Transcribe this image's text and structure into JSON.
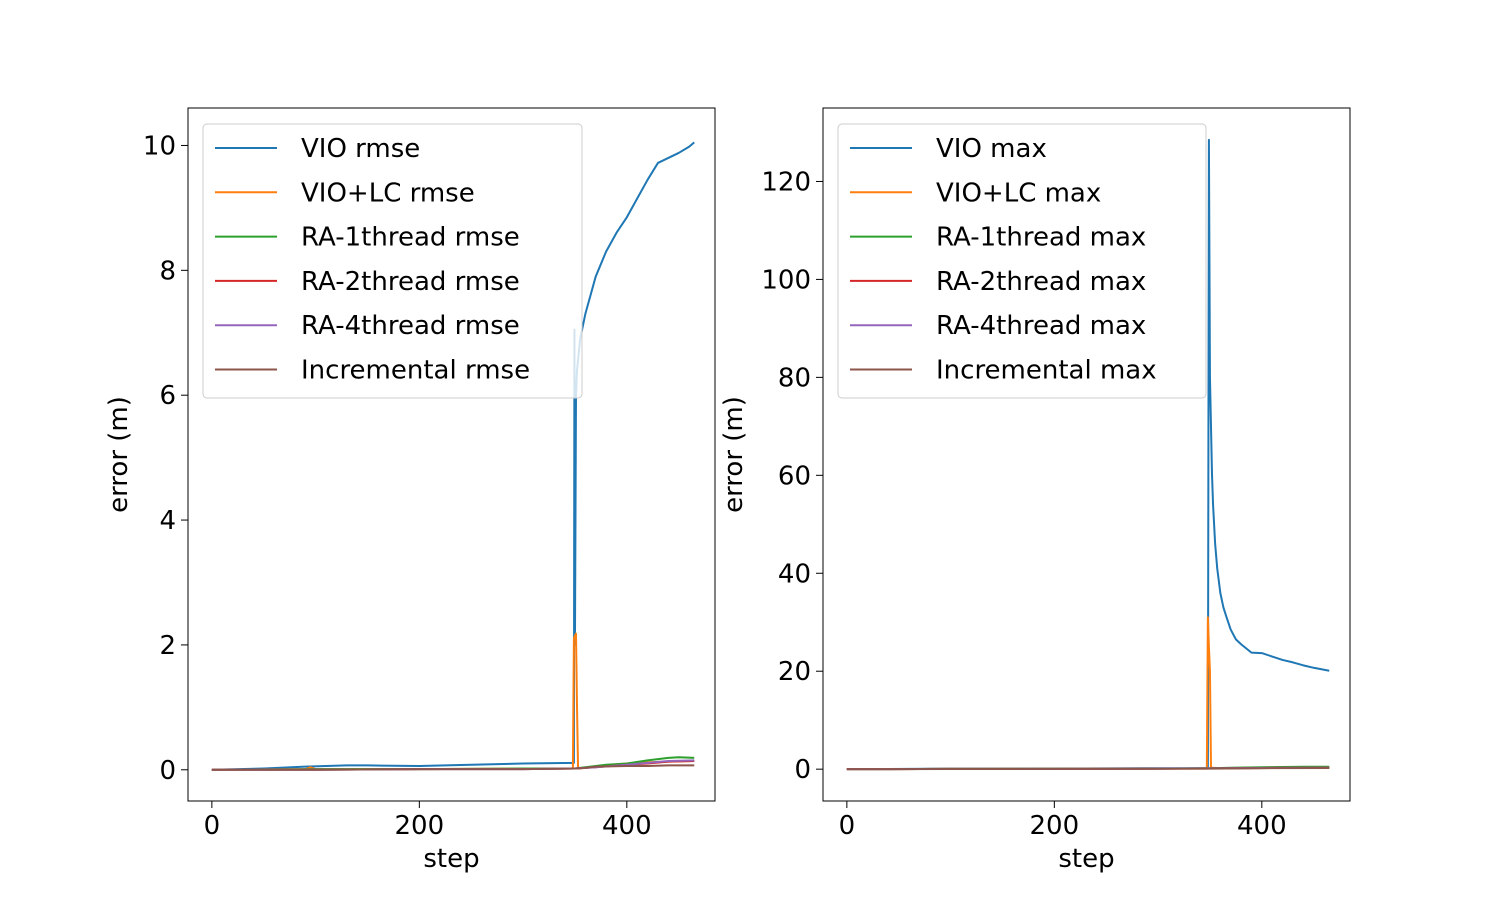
{
  "colors": {
    "c0": "#1f77b4",
    "c1": "#ff7f0e",
    "c2": "#2ca02c",
    "c3": "#d62728",
    "c4": "#9467bd",
    "c5": "#8c564b"
  },
  "chart_data": [
    {
      "type": "line",
      "title": "",
      "xlabel": "step",
      "ylabel": "error (m)",
      "xlim": [
        -23,
        485
      ],
      "ylim": [
        -0.5,
        10.6
      ],
      "xticks": [
        0,
        200,
        400
      ],
      "yticks": [
        0,
        2,
        4,
        6,
        8,
        10
      ],
      "legend_position": "upper-left",
      "grid": false,
      "series": [
        {
          "name": "VIO rmse",
          "color": "#1f77b4",
          "x": [
            0,
            50,
            90,
            130,
            150,
            200,
            250,
            300,
            349,
            349.5,
            350,
            351,
            352,
            355,
            360,
            370,
            380,
            390,
            400,
            410,
            420,
            430,
            440,
            450,
            460,
            465
          ],
          "y": [
            0.0,
            0.02,
            0.05,
            0.07,
            0.07,
            0.06,
            0.08,
            0.1,
            0.11,
            7.05,
            2.0,
            6.0,
            6.4,
            6.9,
            7.3,
            7.9,
            8.3,
            8.6,
            8.85,
            9.15,
            9.45,
            9.72,
            9.8,
            9.88,
            9.98,
            10.05
          ]
        },
        {
          "name": "VIO+LC rmse",
          "color": "#ff7f0e",
          "x": [
            0,
            90,
            95,
            100,
            200,
            300,
            348,
            349,
            350,
            351,
            352,
            353,
            354,
            360,
            380,
            400,
            420,
            440,
            465
          ],
          "y": [
            0.0,
            0.01,
            0.04,
            0.01,
            0.01,
            0.02,
            0.02,
            2.1,
            2.15,
            2.18,
            1.0,
            0.02,
            0.02,
            0.03,
            0.07,
            0.1,
            0.12,
            0.13,
            0.14
          ]
        },
        {
          "name": "RA-1thread rmse",
          "color": "#2ca02c",
          "x": [
            0,
            100,
            200,
            300,
            350,
            360,
            370,
            380,
            400,
            420,
            440,
            450,
            465
          ],
          "y": [
            0.0,
            0.01,
            0.01,
            0.02,
            0.02,
            0.04,
            0.06,
            0.08,
            0.1,
            0.15,
            0.19,
            0.2,
            0.19
          ]
        },
        {
          "name": "RA-2thread rmse",
          "color": "#d62728",
          "x": [
            0,
            100,
            200,
            300,
            350,
            370,
            400,
            420,
            440,
            465
          ],
          "y": [
            0.0,
            0.0,
            0.01,
            0.01,
            0.02,
            0.04,
            0.08,
            0.1,
            0.13,
            0.14
          ]
        },
        {
          "name": "RA-4thread rmse",
          "color": "#9467bd",
          "x": [
            0,
            100,
            200,
            300,
            350,
            370,
            400,
            420,
            440,
            465
          ],
          "y": [
            0.0,
            0.0,
            0.01,
            0.01,
            0.02,
            0.04,
            0.08,
            0.11,
            0.14,
            0.15
          ]
        },
        {
          "name": "Incremental rmse",
          "color": "#8c564b",
          "x": [
            0,
            100,
            200,
            300,
            350,
            360,
            370,
            400,
            420,
            440,
            465
          ],
          "y": [
            0.0,
            0.0,
            0.01,
            0.01,
            0.02,
            0.03,
            0.05,
            0.06,
            0.06,
            0.07,
            0.07
          ]
        }
      ]
    },
    {
      "type": "line",
      "title": "",
      "xlabel": "step",
      "ylabel": "error (m)",
      "xlim": [
        -23,
        485
      ],
      "ylim": [
        -6.5,
        135
      ],
      "xticks": [
        0,
        200,
        400
      ],
      "yticks": [
        0,
        20,
        40,
        60,
        80,
        100,
        120
      ],
      "legend_position": "upper-left",
      "grid": false,
      "series": [
        {
          "name": "VIO max",
          "color": "#1f77b4",
          "x": [
            0,
            100,
            200,
            300,
            348,
            349,
            350,
            351,
            352,
            353,
            355,
            357,
            360,
            363,
            366,
            370,
            375,
            380,
            390,
            400,
            410,
            420,
            430,
            440,
            450,
            465
          ],
          "y": [
            0.0,
            0.1,
            0.1,
            0.2,
            0.2,
            128.5,
            80.0,
            70.0,
            60.0,
            54.0,
            46.0,
            41.0,
            36.0,
            33.0,
            31.0,
            28.5,
            26.5,
            25.5,
            23.8,
            23.7,
            23.0,
            22.3,
            21.8,
            21.2,
            20.7,
            20.1
          ]
        },
        {
          "name": "VIO+LC max",
          "color": "#ff7f0e",
          "x": [
            0,
            100,
            200,
            300,
            347,
            348,
            349,
            350,
            351,
            352,
            360,
            400,
            465
          ],
          "y": [
            0.0,
            0.05,
            0.05,
            0.1,
            0.1,
            31.0,
            25.0,
            20.0,
            0.5,
            0.3,
            0.2,
            0.3,
            0.4
          ]
        },
        {
          "name": "RA-1thread max",
          "color": "#2ca02c",
          "x": [
            0,
            100,
            200,
            300,
            350,
            370,
            400,
            440,
            465
          ],
          "y": [
            0.0,
            0.05,
            0.1,
            0.1,
            0.2,
            0.3,
            0.4,
            0.5,
            0.5
          ]
        },
        {
          "name": "RA-2thread max",
          "color": "#d62728",
          "x": [
            0,
            100,
            200,
            300,
            350,
            400,
            465
          ],
          "y": [
            0.0,
            0.05,
            0.05,
            0.1,
            0.15,
            0.25,
            0.3
          ]
        },
        {
          "name": "RA-4thread max",
          "color": "#9467bd",
          "x": [
            0,
            100,
            200,
            300,
            350,
            400,
            465
          ],
          "y": [
            0.0,
            0.05,
            0.05,
            0.1,
            0.15,
            0.25,
            0.3
          ]
        },
        {
          "name": "Incremental max",
          "color": "#8c564b",
          "x": [
            0,
            100,
            200,
            300,
            350,
            400,
            465
          ],
          "y": [
            0.0,
            0.03,
            0.05,
            0.08,
            0.1,
            0.2,
            0.25
          ]
        }
      ]
    }
  ]
}
